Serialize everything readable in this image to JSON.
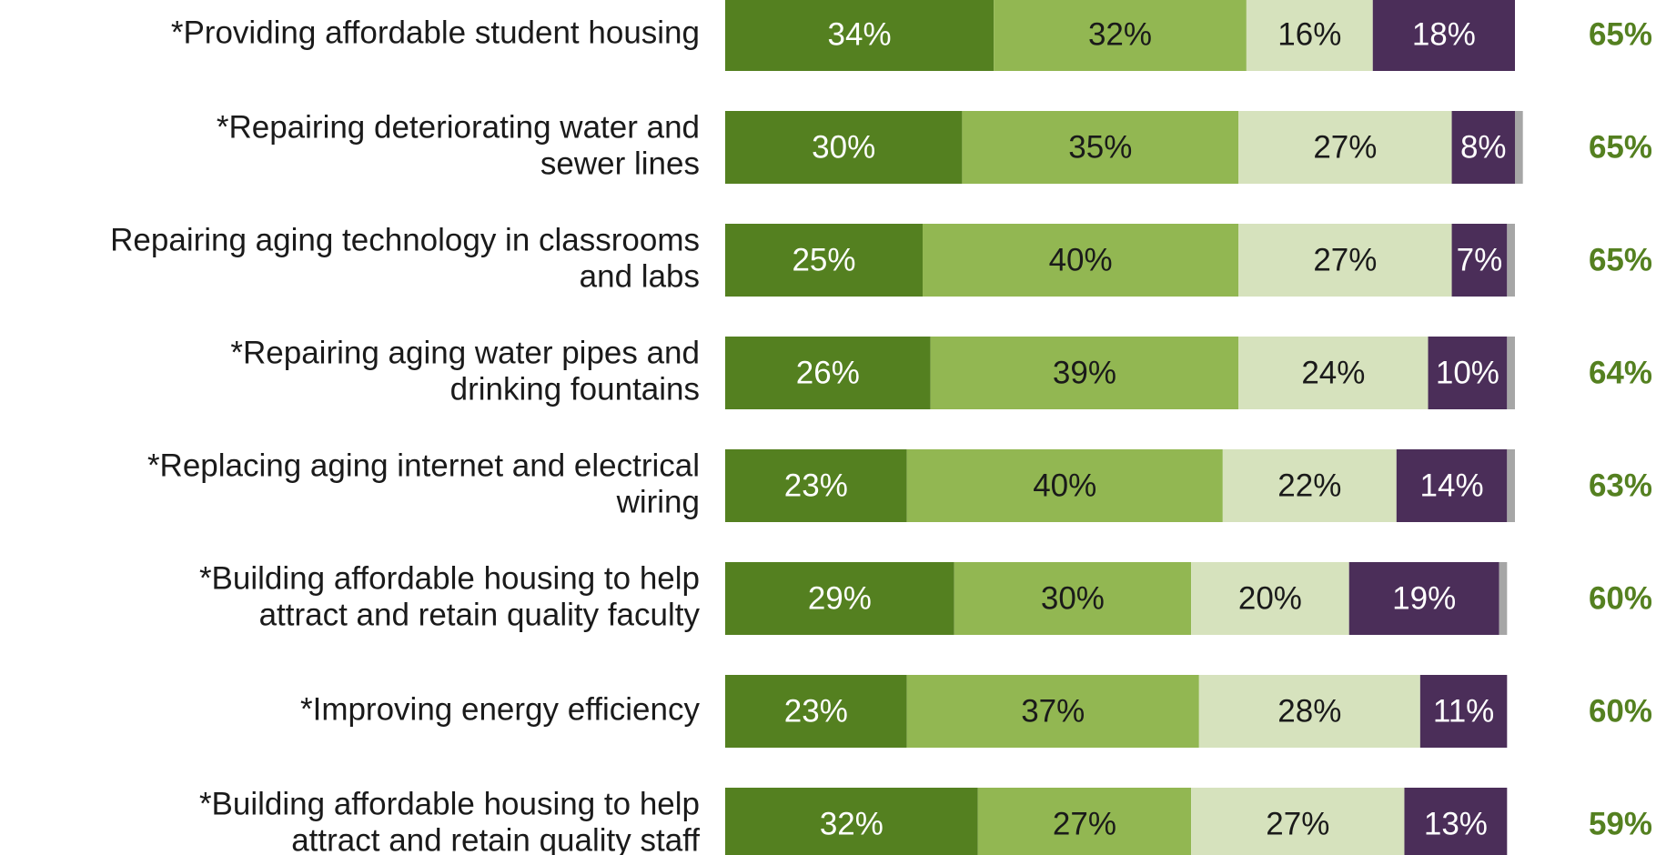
{
  "chart_data": {
    "type": "stacked_bar_horizontal",
    "categories": [
      [
        "*Providing affordable student housing"
      ],
      [
        "*Repairing deteriorating water and",
        "sewer lines"
      ],
      [
        "Repairing aging technology in classrooms",
        "and labs"
      ],
      [
        "*Repairing aging water pipes and",
        "drinking fountains"
      ],
      [
        "*Replacing aging internet and electrical",
        "wiring"
      ],
      [
        "*Building affordable housing to help",
        "attract and retain quality faculty"
      ],
      [
        "*Improving energy efficiency"
      ],
      [
        "*Building affordable housing to help",
        "attract and retain quality staff"
      ]
    ],
    "xlim": [
      0,
      100
    ],
    "series": [
      {
        "color": "#548020",
        "label_color": "#ffffff",
        "values": [
          34,
          30,
          25,
          26,
          23,
          29,
          23,
          32
        ],
        "value_labels": [
          "34%",
          "30%",
          "25%",
          "26%",
          "23%",
          "29%",
          "23%",
          "32%"
        ]
      },
      {
        "color": "#92b752",
        "label_color": "#1a1a1a",
        "values": [
          32,
          35,
          40,
          39,
          40,
          30,
          37,
          27
        ],
        "value_labels": [
          "32%",
          "35%",
          "40%",
          "39%",
          "40%",
          "30%",
          "37%",
          "27%"
        ]
      },
      {
        "color": "#d6e2bd",
        "label_color": "#1a1a1a",
        "values": [
          16,
          27,
          27,
          24,
          22,
          20,
          28,
          27
        ],
        "value_labels": [
          "16%",
          "27%",
          "27%",
          "24%",
          "22%",
          "20%",
          "28%",
          "27%"
        ]
      },
      {
        "color": "#4b2e59",
        "label_color": "#ffffff",
        "values": [
          18,
          8,
          7,
          10,
          14,
          19,
          11,
          13
        ],
        "value_labels": [
          "18%",
          "8%",
          "7%",
          "10%",
          "14%",
          "19%",
          "11%",
          "13%"
        ]
      },
      {
        "color": "#a6a6a6",
        "values": [
          0,
          1,
          1,
          1,
          1,
          1,
          0,
          0
        ]
      }
    ],
    "totals": {
      "color": "#548020",
      "values": [
        65,
        65,
        65,
        64,
        63,
        60,
        60,
        59
      ],
      "value_labels": [
        "65%",
        "65%",
        "65%",
        "64%",
        "63%",
        "60%",
        "60%",
        "59%"
      ]
    }
  }
}
